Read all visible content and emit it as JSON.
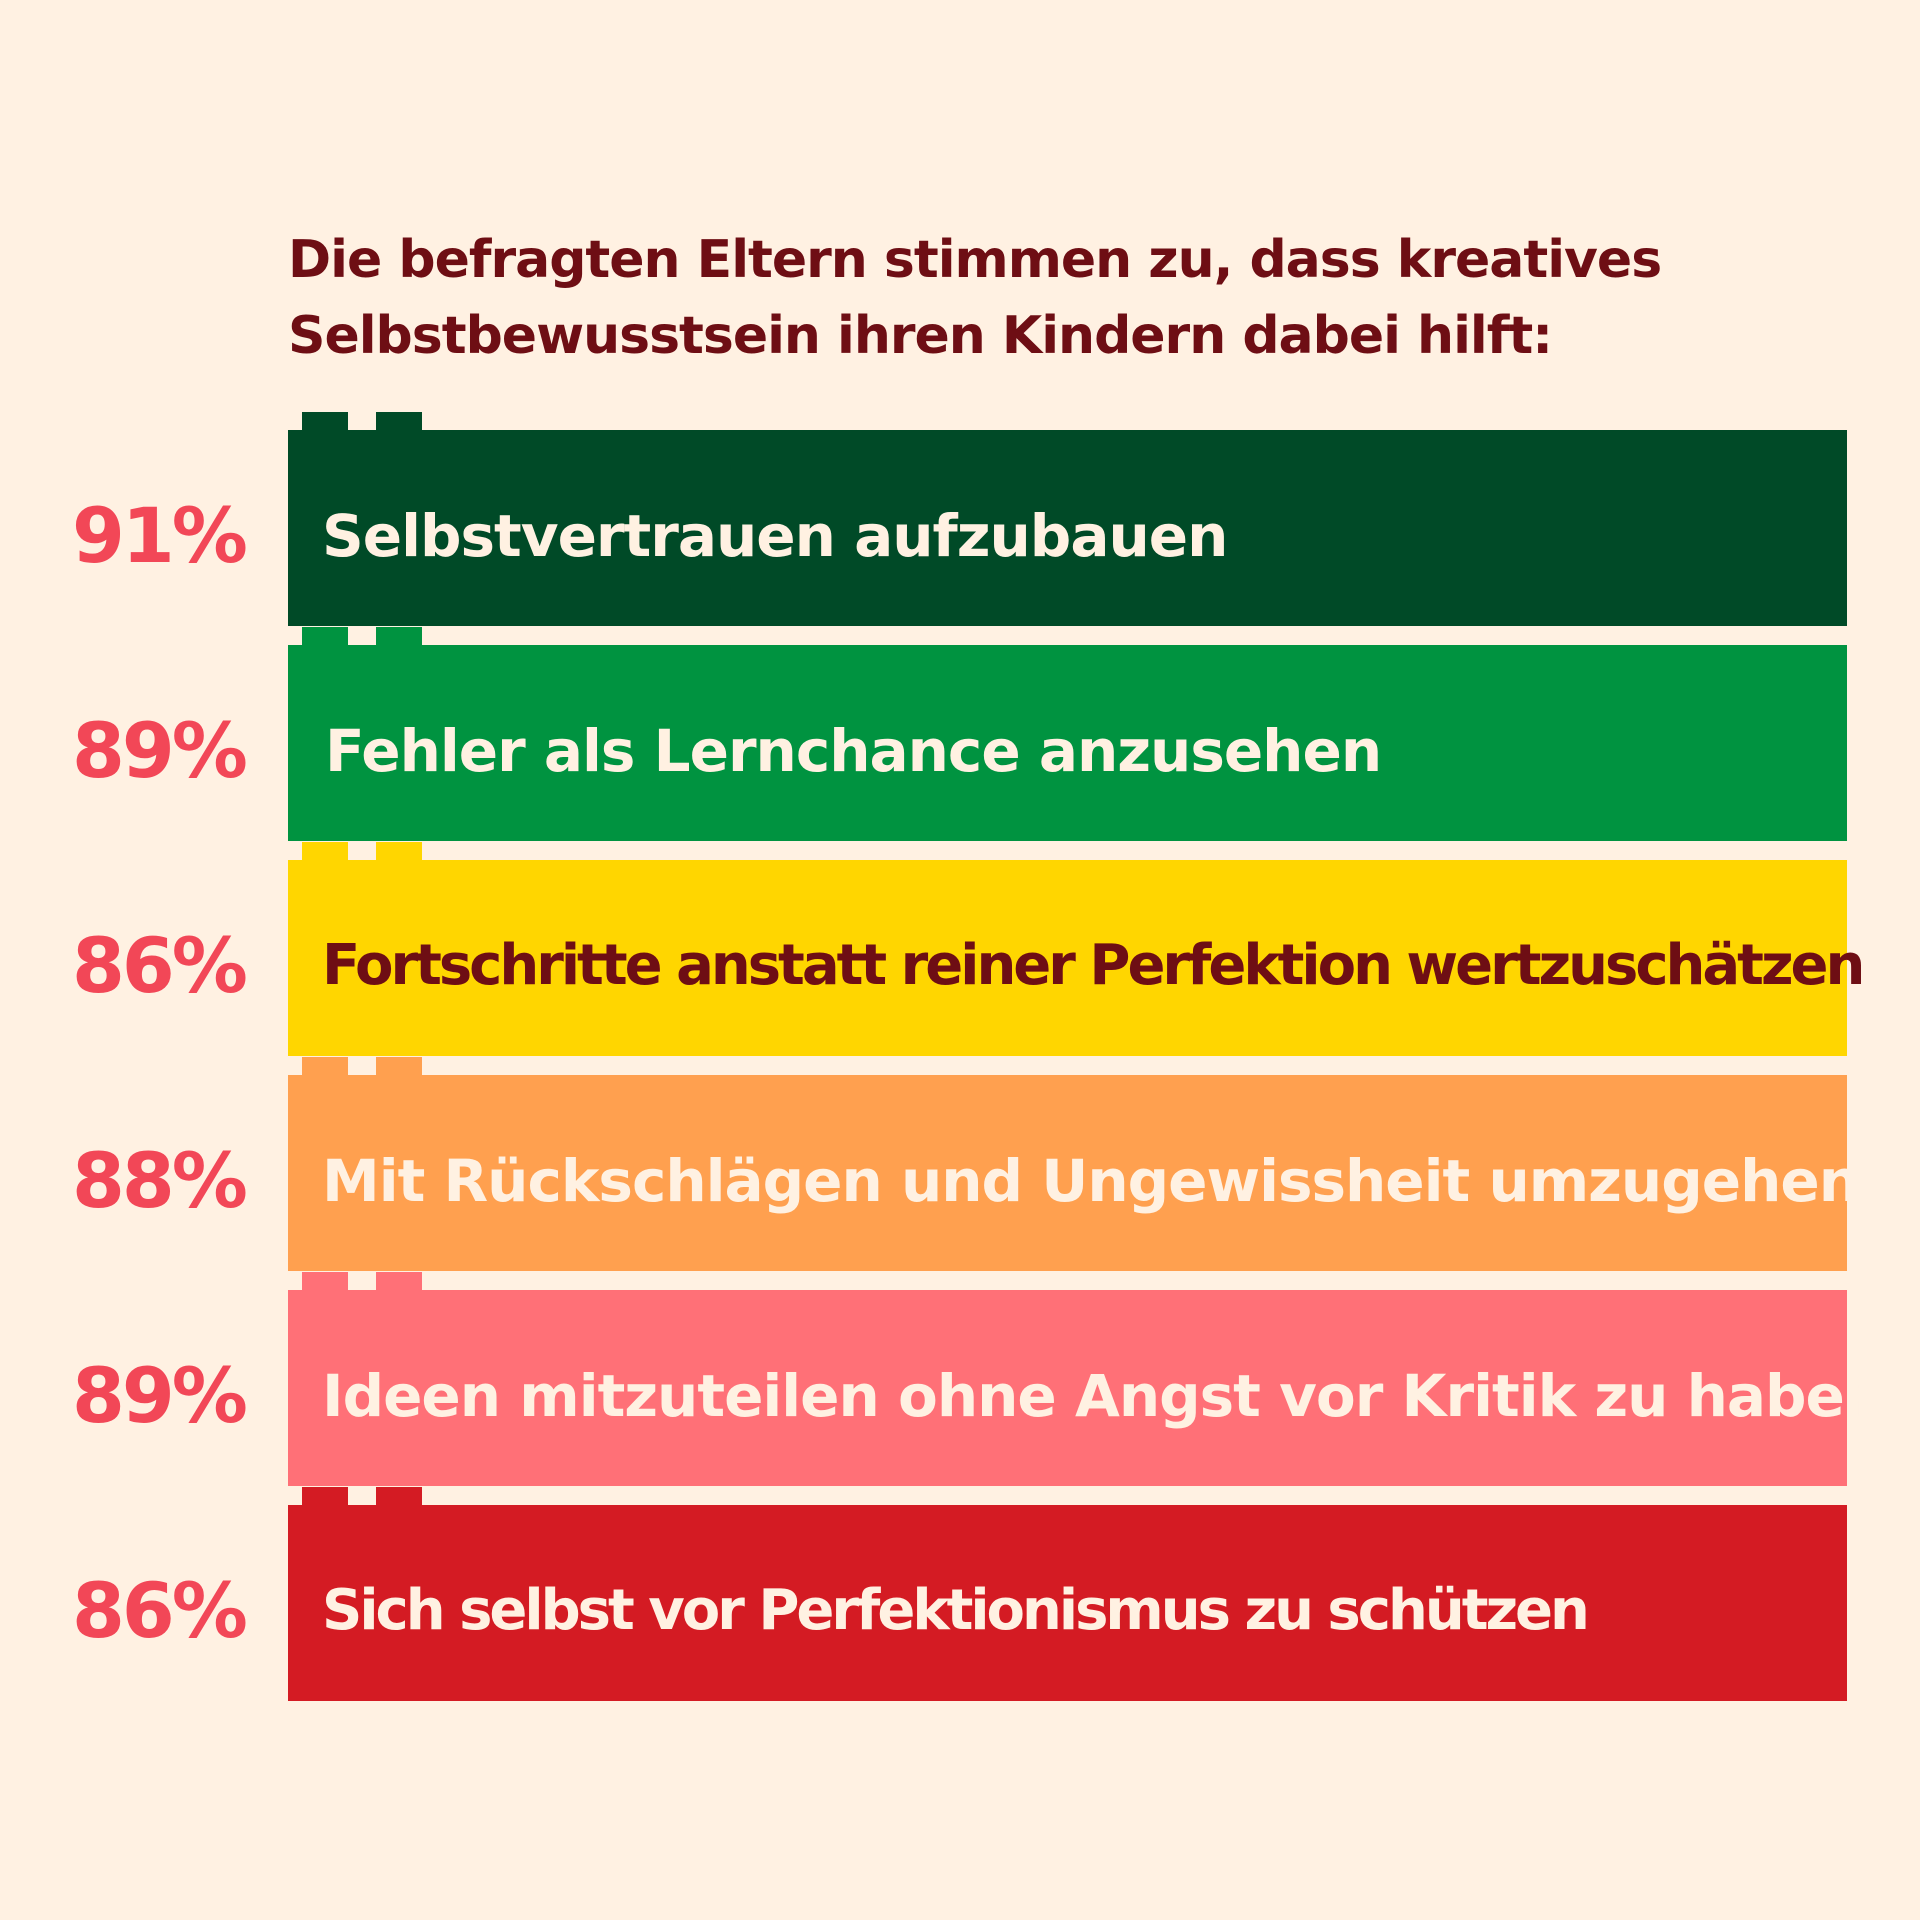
{
  "title_lines": [
    "Die befragten Eltern stimmen zu, dass kreatives",
    "Selbstbewusstsein ihren Kindern dabei hilft:"
  ],
  "colors": {
    "background": "#FFF1E2",
    "title": "#6E0E14",
    "percent": "#F24757"
  },
  "chart_data": {
    "type": "table",
    "title": "Die befragten Eltern stimmen zu, dass kreatives Selbstbewusstsein ihren Kindern dabei hilft:",
    "rows": [
      {
        "percent": "91%",
        "value": 91,
        "label": "Selbstvertrauen aufzubauen",
        "color": "#004A27",
        "text_color": "#FFF1E2"
      },
      {
        "percent": "89%",
        "value": 89,
        "label": "Fehler als Lernchance anzusehen",
        "color": "#009340",
        "text_color": "#FFF1E2"
      },
      {
        "percent": "86%",
        "value": 86,
        "label": "Fortschritte anstatt reiner Perfektion wertzuschätzen",
        "color": "#FFD600",
        "text_color": "#6E0E14"
      },
      {
        "percent": "88%",
        "value": 88,
        "label": "Mit Rückschlägen und Ungewissheit umzugehen",
        "color": "#FFA04F",
        "text_color": "#FFF1E2"
      },
      {
        "percent": "89%",
        "value": 89,
        "label": "Ideen mitzuteilen ohne Angst vor Kritik zu haben",
        "color": "#FF7077",
        "text_color": "#FFF1E2"
      },
      {
        "percent": "86%",
        "value": 86,
        "label": "Sich selbst vor Perfektionismus zu schützen",
        "color": "#D41B23",
        "text_color": "#FFF1E2"
      }
    ]
  }
}
